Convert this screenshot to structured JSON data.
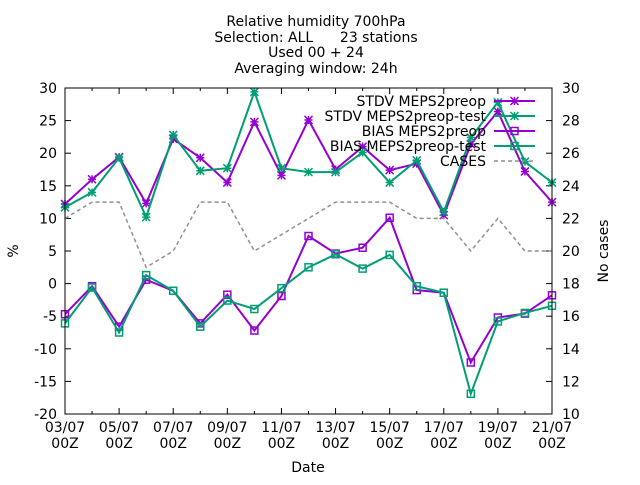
{
  "chart_data": {
    "type": "line",
    "title_lines": [
      "Relative humidity 700hPa",
      "Selection: ALL      23 stations",
      "Used 00 + 24",
      "Averaging window: 24h"
    ],
    "xlabel": "Date",
    "ylabel": "%",
    "y2label": "No cases",
    "ylim": [
      -20,
      30
    ],
    "y2lim": [
      10,
      30
    ],
    "yticks": [
      -20,
      -15,
      -10,
      -5,
      0,
      5,
      10,
      15,
      20,
      25,
      30
    ],
    "y2ticks": [
      10,
      12,
      14,
      16,
      18,
      20,
      22,
      24,
      26,
      28,
      30
    ],
    "x_dates": [
      "03/07",
      "04/07",
      "05/07",
      "06/07",
      "07/07",
      "08/07",
      "09/07",
      "10/07",
      "11/07",
      "12/07",
      "13/07",
      "14/07",
      "15/07",
      "16/07",
      "17/07",
      "18/07",
      "19/07",
      "20/07",
      "21/07"
    ],
    "xtick_labels": [
      {
        "date": "03/07",
        "time": "00Z"
      },
      {
        "date": "05/07",
        "time": "00Z"
      },
      {
        "date": "07/07",
        "time": "00Z"
      },
      {
        "date": "09/07",
        "time": "00Z"
      },
      {
        "date": "11/07",
        "time": "00Z"
      },
      {
        "date": "13/07",
        "time": "00Z"
      },
      {
        "date": "15/07",
        "time": "00Z"
      },
      {
        "date": "17/07",
        "time": "00Z"
      },
      {
        "date": "19/07",
        "time": "00Z"
      },
      {
        "date": "21/07",
        "time": "00Z"
      }
    ],
    "grid": false,
    "legend_position": "top-right",
    "series": [
      {
        "name": "STDV MEPS2preop",
        "axis": "y1",
        "color": "#9400d3",
        "marker": "star",
        "dash": "solid",
        "values": [
          12.2,
          16.0,
          19.4,
          12.3,
          22.2,
          19.3,
          15.5,
          24.8,
          16.6,
          25.1,
          17.5,
          21.0,
          17.4,
          18.4,
          10.5,
          21.4,
          26.4,
          17.2,
          12.5
        ]
      },
      {
        "name": "STDV MEPS2preop-test",
        "axis": "y1",
        "color": "#009e73",
        "marker": "star",
        "dash": "solid",
        "values": [
          11.7,
          14.0,
          19.3,
          10.2,
          22.8,
          17.3,
          17.7,
          29.4,
          17.7,
          17.1,
          17.1,
          20.1,
          15.5,
          18.9,
          11.0,
          22.4,
          27.8,
          18.7,
          15.5
        ]
      },
      {
        "name": "BIAS MEPS2preop",
        "axis": "y1",
        "color": "#9400d3",
        "marker": "square",
        "dash": "solid",
        "values": [
          -4.7,
          -0.4,
          -6.6,
          0.6,
          -1.1,
          -6.1,
          -1.7,
          -7.2,
          -1.9,
          7.3,
          4.6,
          5.5,
          10.1,
          -1.0,
          -1.4,
          -12.1,
          -5.2,
          -4.6,
          -1.8
        ]
      },
      {
        "name": "BIAS MEPS2preop-test",
        "axis": "y1",
        "color": "#009e73",
        "marker": "square",
        "dash": "solid",
        "values": [
          -6.1,
          -0.6,
          -7.5,
          1.3,
          -1.1,
          -6.6,
          -2.6,
          -3.9,
          -0.7,
          2.5,
          4.5,
          2.3,
          4.4,
          -0.4,
          -1.4,
          -16.9,
          -5.8,
          -4.5,
          -3.4
        ]
      },
      {
        "name": "CASES",
        "axis": "y2",
        "color": "#909090",
        "marker": "none",
        "dash": "dashed",
        "values": [
          22,
          23,
          23,
          19,
          20,
          23,
          23,
          20,
          21,
          22,
          23,
          23,
          23,
          22,
          22,
          20,
          22,
          20,
          20
        ]
      }
    ]
  }
}
